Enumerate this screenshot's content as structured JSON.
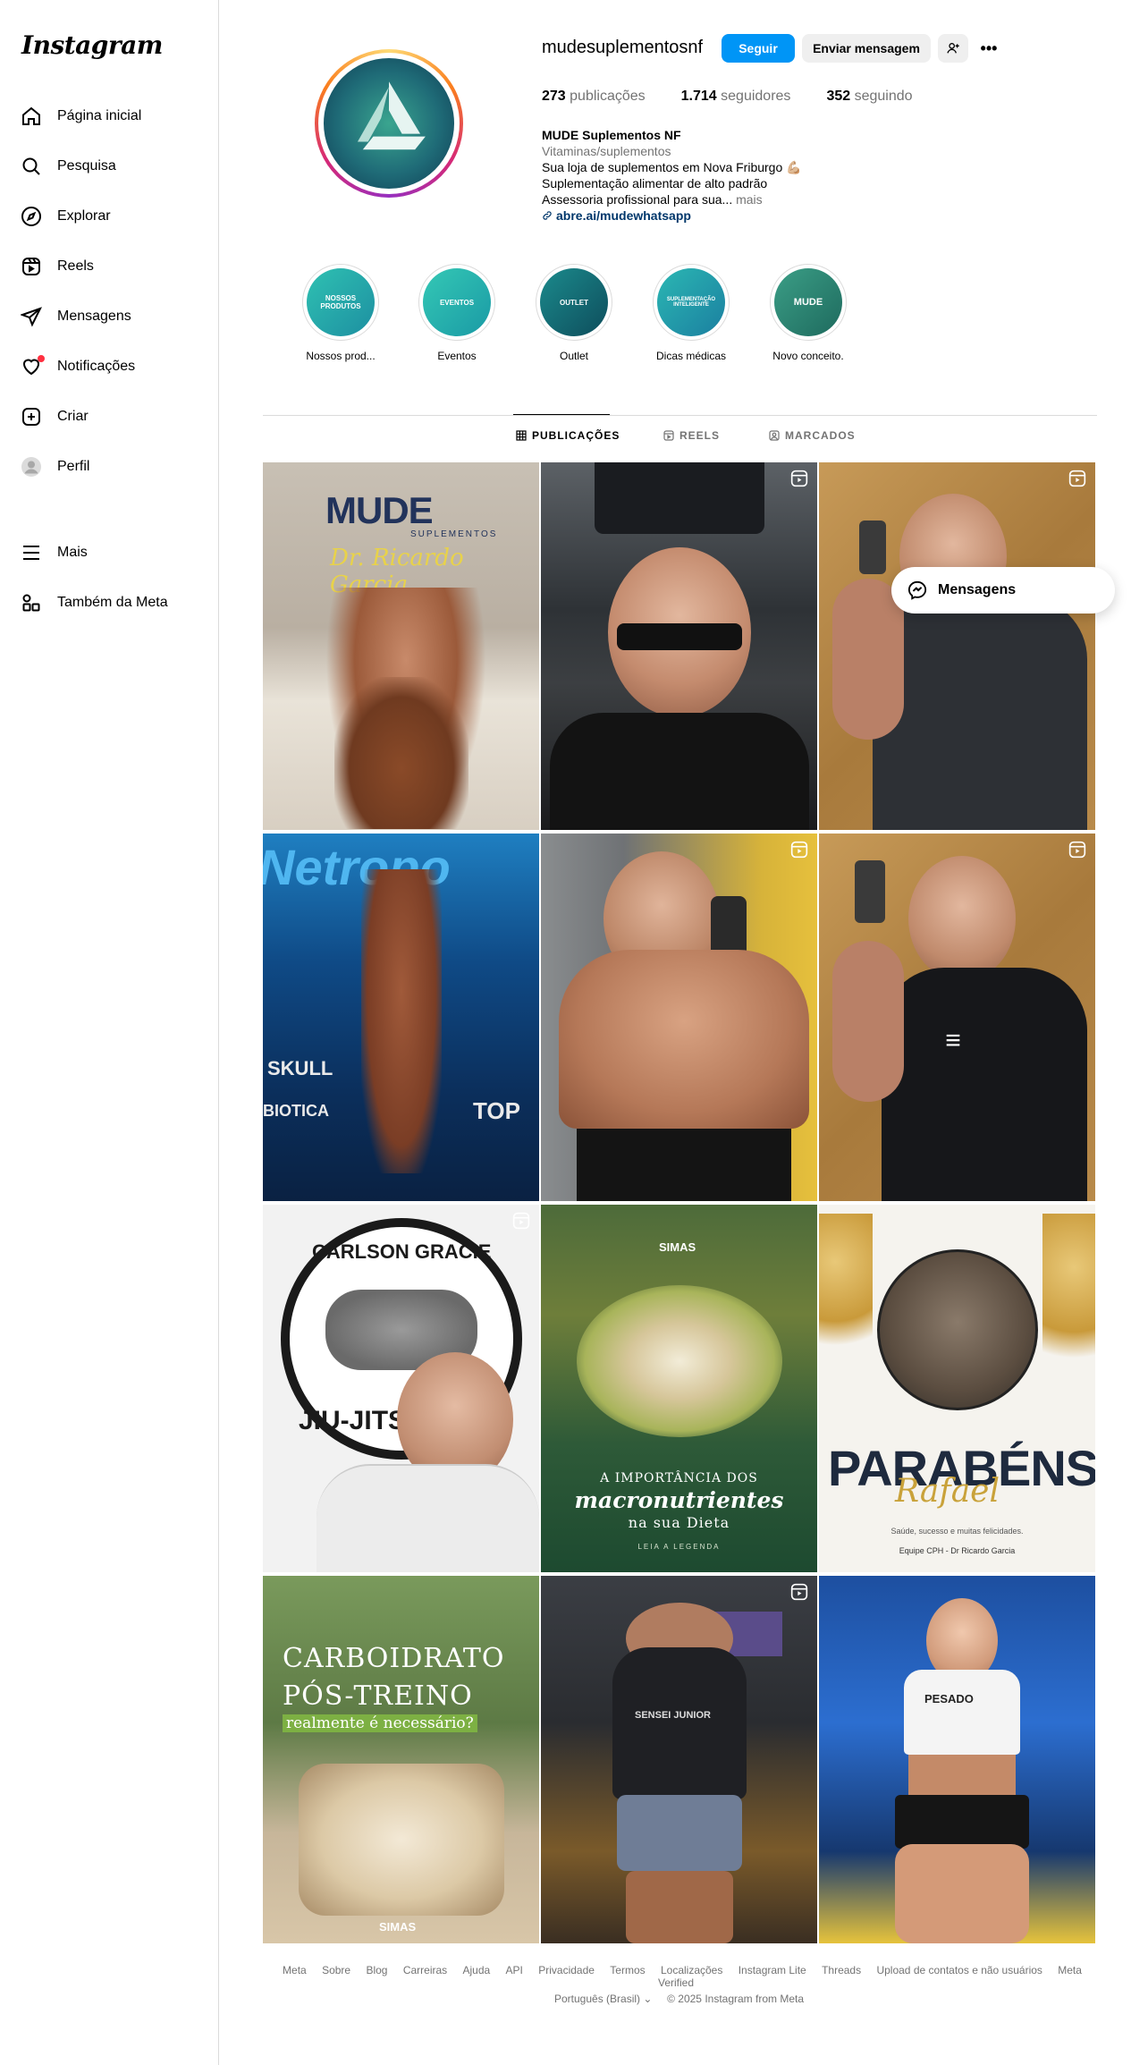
{
  "app": {
    "logo": "Instagram"
  },
  "sidebar": {
    "items": [
      {
        "label": "Página inicial",
        "icon": "home-icon"
      },
      {
        "label": "Pesquisa",
        "icon": "search-icon"
      },
      {
        "label": "Explorar",
        "icon": "compass-icon"
      },
      {
        "label": "Reels",
        "icon": "reels-icon"
      },
      {
        "label": "Mensagens",
        "icon": "send-icon"
      },
      {
        "label": "Notificações",
        "icon": "heart-icon"
      },
      {
        "label": "Criar",
        "icon": "plus-square-icon"
      },
      {
        "label": "Perfil",
        "icon": "profile-avatar-icon"
      },
      {
        "label": "Mais",
        "icon": "menu-icon"
      },
      {
        "label": "Também da Meta",
        "icon": "meta-grid-icon"
      }
    ]
  },
  "profile": {
    "username": "mudesuplementosnf",
    "follow_label": "Seguir",
    "message_label": "Enviar mensagem",
    "more_label": "•••",
    "stats": [
      {
        "value": "273",
        "label": "publicações"
      },
      {
        "value": "1.714",
        "label": "seguidores"
      },
      {
        "value": "352",
        "label": "seguindo"
      }
    ],
    "bio": {
      "name": "MUDE Suplementos NF",
      "category": "Vitaminas/suplementos",
      "line1": "Sua loja de suplementos em Nova Friburgo 💪🏼",
      "line2": "Suplementação alimentar de alto padrão",
      "line3": "Assessoria profissional para sua...",
      "more": "mais",
      "link": "abre.ai/mudewhatsapp"
    }
  },
  "highlights": [
    {
      "label": "Nossos prod...",
      "inner": "NOSSOS PRODUTOS"
    },
    {
      "label": "Eventos",
      "inner": "EVENTOS"
    },
    {
      "label": "Outlet",
      "inner": "OUTLET"
    },
    {
      "label": "Dicas médicas",
      "inner": "SUPLEMENTAÇÃO INTELIGENTE"
    },
    {
      "label": "Novo conceito.",
      "inner": "MUDE"
    }
  ],
  "tabs": [
    {
      "label": "PUBLICAÇÕES"
    },
    {
      "label": "REELS"
    },
    {
      "label": "MARCADOS"
    }
  ],
  "posts": {
    "p1_brand": "MUDE",
    "p1_sub": "SUPLEMENTOS",
    "p1_script": "Dr. Ricardo Garcia",
    "p4_banner": "Netropo",
    "p4_skull": "SKULL",
    "p4_biotica": "BIOTICA",
    "p4_top": "TOP",
    "p7_top": "CARLSON GRACIE",
    "p7_bottom": "JIU-JITSU",
    "p8_brand": "SIMAS",
    "p8_line1": "A IMPORTÂNCIA DOS",
    "p8_line2": "macronutrientes",
    "p8_line3": "na sua Dieta",
    "p8_line4": "LEIA A LEGENDA",
    "p9_big": "PARABÉNS",
    "p9_script": "Rafael",
    "p9_msg": "Saúde, sucesso e muitas felicidades.",
    "p9_sign": "Equipe CPH - Dr Ricardo Garcia",
    "p10_l1": "CARBOIDRATO",
    "p10_l2": "PÓS-TREINO",
    "p10_l3": "realmente é necessário?",
    "p10_brand": "SIMAS",
    "p11_shirt": "SENSEI JUNIOR",
    "p12_shirt": "PESADO"
  },
  "floating": {
    "label": "Mensagens"
  },
  "footer": {
    "links": [
      "Meta",
      "Sobre",
      "Blog",
      "Carreiras",
      "Ajuda",
      "API",
      "Privacidade",
      "Termos",
      "Localizações",
      "Instagram Lite",
      "Threads",
      "Upload de contatos e não usuários",
      "Meta Verified"
    ],
    "language": "Português (Brasil)",
    "copyright": "© 2025 Instagram from Meta"
  }
}
